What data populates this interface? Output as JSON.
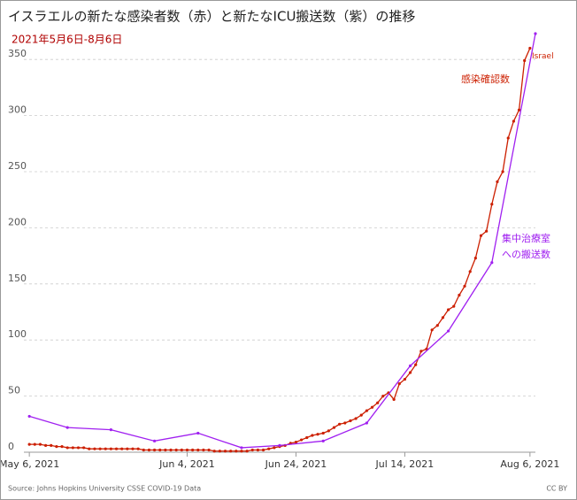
{
  "chart_data": {
    "type": "line",
    "title": "イスラエルの新たな感染者数（赤）と新たなICU搬送数（紫）の推移",
    "subtitle": "2021年5月6日-8月6日",
    "source": "Source: Johns Hopkins University CSSE COVID-19 Data",
    "license": "CC BY",
    "annotation": "Israel",
    "xlim": [
      "2021-05-05",
      "2021-08-07"
    ],
    "xticks": [
      {
        "value": "2021-05-06",
        "label": "May 6, 2021"
      },
      {
        "value": "2021-06-04",
        "label": "Jun 4, 2021"
      },
      {
        "value": "2021-06-24",
        "label": "Jun 24, 2021"
      },
      {
        "value": "2021-07-14",
        "label": "Jul 14, 2021"
      },
      {
        "value": "2021-08-06",
        "label": "Aug 6, 2021"
      }
    ],
    "ylim": [
      0,
      375
    ],
    "yticks": [
      0,
      50,
      100,
      150,
      200,
      250,
      300,
      350
    ],
    "grid": true,
    "series": [
      {
        "name": "感染確認数",
        "color": "#cc1f00",
        "x": [
          "2021-05-06",
          "2021-05-07",
          "2021-05-08",
          "2021-05-09",
          "2021-05-10",
          "2021-05-11",
          "2021-05-12",
          "2021-05-13",
          "2021-05-14",
          "2021-05-15",
          "2021-05-16",
          "2021-05-17",
          "2021-05-18",
          "2021-05-19",
          "2021-05-20",
          "2021-05-21",
          "2021-05-22",
          "2021-05-23",
          "2021-05-24",
          "2021-05-25",
          "2021-05-26",
          "2021-05-27",
          "2021-05-28",
          "2021-05-29",
          "2021-05-30",
          "2021-05-31",
          "2021-06-01",
          "2021-06-02",
          "2021-06-03",
          "2021-06-04",
          "2021-06-05",
          "2021-06-06",
          "2021-06-07",
          "2021-06-08",
          "2021-06-09",
          "2021-06-10",
          "2021-06-11",
          "2021-06-12",
          "2021-06-13",
          "2021-06-14",
          "2021-06-15",
          "2021-06-16",
          "2021-06-17",
          "2021-06-18",
          "2021-06-19",
          "2021-06-20",
          "2021-06-21",
          "2021-06-22",
          "2021-06-23",
          "2021-06-24",
          "2021-06-25",
          "2021-06-26",
          "2021-06-27",
          "2021-06-28",
          "2021-06-29",
          "2021-06-30",
          "2021-07-01",
          "2021-07-02",
          "2021-07-03",
          "2021-07-04",
          "2021-07-05",
          "2021-07-06",
          "2021-07-07",
          "2021-07-08",
          "2021-07-09",
          "2021-07-10",
          "2021-07-11",
          "2021-07-12",
          "2021-07-13",
          "2021-07-14",
          "2021-07-15",
          "2021-07-16",
          "2021-07-17",
          "2021-07-18",
          "2021-07-19",
          "2021-07-20",
          "2021-07-21",
          "2021-07-22",
          "2021-07-23",
          "2021-07-24",
          "2021-07-25",
          "2021-07-26",
          "2021-07-27",
          "2021-07-28",
          "2021-07-29",
          "2021-07-30",
          "2021-07-31",
          "2021-08-01",
          "2021-08-02",
          "2021-08-03",
          "2021-08-04",
          "2021-08-05",
          "2021-08-06"
        ],
        "values": [
          7,
          7,
          7,
          6,
          6,
          5,
          5,
          4,
          4,
          4,
          4,
          3,
          3,
          3,
          3,
          3,
          3,
          3,
          3,
          3,
          3,
          2,
          2,
          2,
          2,
          2,
          2,
          2,
          2,
          2,
          2,
          2,
          2,
          2,
          1,
          1,
          1,
          1,
          1,
          1,
          1,
          2,
          2,
          2,
          3,
          4,
          5,
          6,
          8,
          9,
          11,
          13,
          15,
          16,
          17,
          19,
          22,
          25,
          26,
          28,
          30,
          33,
          37,
          40,
          44,
          50,
          53,
          47,
          61,
          65,
          71,
          78,
          90,
          92,
          109,
          113,
          120,
          127,
          130,
          140,
          148,
          161,
          173,
          193,
          197,
          221,
          241,
          250,
          280,
          295,
          305,
          349,
          360
        ]
      },
      {
        "name": "集中治療室への搬送数",
        "color": "#a020f0",
        "x": [
          "2021-05-06",
          "2021-05-13",
          "2021-05-21",
          "2021-05-29",
          "2021-06-06",
          "2021-06-14",
          "2021-06-21",
          "2021-06-29",
          "2021-07-07",
          "2021-07-15",
          "2021-07-22",
          "2021-07-30",
          "2021-08-07"
        ],
        "values": [
          32,
          22,
          20,
          10,
          17,
          4,
          6,
          10,
          26,
          77,
          108,
          169,
          373
        ]
      }
    ]
  }
}
